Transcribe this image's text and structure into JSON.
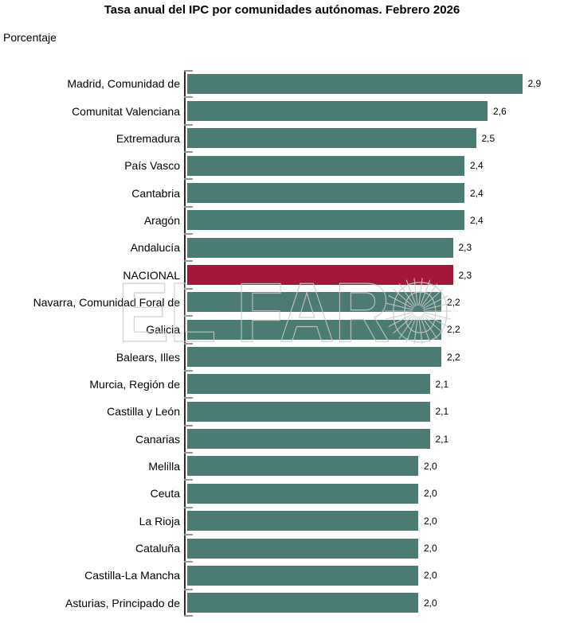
{
  "page": {
    "background": "#ffffff"
  },
  "chart_data": {
    "type": "bar",
    "orientation": "horizontal",
    "title": "Tasa anual del IPC por comunidades autónomas. Febrero 2026",
    "units_label": "Porcentaje",
    "xlim": [
      0,
      3
    ],
    "grid": false,
    "legend": "none",
    "categories": [
      "Madrid, Comunidad de",
      "Comunitat Valenciana",
      "Extremadura",
      "País Vasco",
      "Cantabria",
      "Aragón",
      "Andalucía",
      "NACIONAL",
      "Navarra, Comunidad Foral de",
      "Galicia",
      "Balears, Illes",
      "Murcia, Región de",
      "Castilla y León",
      "Canarias",
      "Melilla",
      "Ceuta",
      "La Rioja",
      "Cataluña",
      "Castilla-La Mancha",
      "Asturias, Principado de"
    ],
    "values": [
      2.9,
      2.6,
      2.5,
      2.4,
      2.4,
      2.4,
      2.3,
      2.3,
      2.2,
      2.2,
      2.2,
      2.1,
      2.1,
      2.1,
      2.0,
      2.0,
      2.0,
      2.0,
      2.0,
      2.0
    ],
    "value_labels": [
      "2,9",
      "2,6",
      "2,5",
      "2,4",
      "2,4",
      "2,4",
      "2,3",
      "2,3",
      "2,2",
      "2,2",
      "2,2",
      "2,1",
      "2,1",
      "2,1",
      "2,0",
      "2,0",
      "2,0",
      "2,0",
      "2,0",
      "2,0"
    ],
    "highlight_index": 7,
    "highlight_category": "NACIONAL",
    "bar_color": "#4A7C74",
    "highlight_color": "#A5173A",
    "axis_color": "#2b2b2b",
    "tick_color": "#979797"
  },
  "watermark": {
    "text": "EL FARO",
    "color": "#c9c9c9"
  }
}
